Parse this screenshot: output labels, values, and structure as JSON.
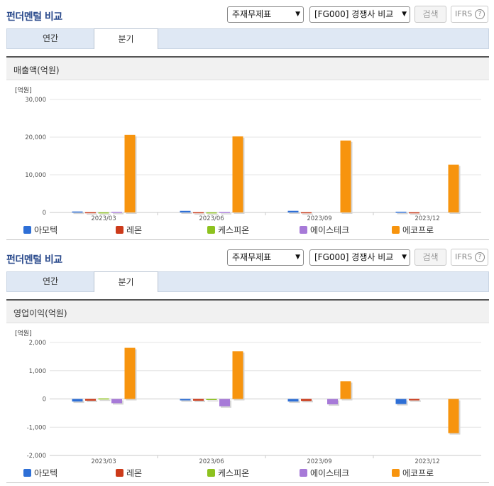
{
  "panels": [
    {
      "header": {
        "title": "펀더멘털 비교",
        "statement_select": "주재무제표",
        "compare_select": "[FG000] 경쟁사 비교",
        "search_label": "검색",
        "ifrs_label": "IFRS",
        "help_glyph": "?"
      },
      "tabs": [
        {
          "label": "연간",
          "active": false
        },
        {
          "label": "분기",
          "active": true
        }
      ],
      "metric_title": "매출액(억원)",
      "chart_data": {
        "type": "bar",
        "unit_label": "[억원]",
        "categories": [
          "2023/03",
          "2023/06",
          "2023/09",
          "2023/12"
        ],
        "ylim": [
          0,
          30000
        ],
        "yticks": [
          0,
          10000,
          20000,
          30000
        ],
        "ytick_labels": [
          "0",
          "10,000",
          "20,000",
          "30,000"
        ],
        "grid": true,
        "legend_position": "bottom",
        "series": [
          {
            "name": "아모텍",
            "color": "#2e6fd6",
            "values": [
              250,
              420,
              430,
              200
            ]
          },
          {
            "name": "레몬",
            "color": "#cc3a1a",
            "values": [
              60,
              60,
              55,
              40
            ]
          },
          {
            "name": "케스피온",
            "color": "#8dc21f",
            "values": [
              20,
              20,
              0,
              0
            ]
          },
          {
            "name": "에이스테크",
            "color": "#a77ad8",
            "values": [
              180,
              140,
              0,
              0
            ]
          },
          {
            "name": "에코프로",
            "color": "#f7940e",
            "values": [
              20600,
              20200,
              19100,
              12700
            ]
          }
        ]
      }
    },
    {
      "header": {
        "title": "펀더멘털 비교",
        "statement_select": "주재무제표",
        "compare_select": "[FG000] 경쟁사 비교",
        "search_label": "검색",
        "ifrs_label": "IFRS",
        "help_glyph": "?"
      },
      "tabs": [
        {
          "label": "연간",
          "active": false
        },
        {
          "label": "분기",
          "active": true
        }
      ],
      "metric_title": "영업이익(억원)",
      "chart_data": {
        "type": "bar",
        "unit_label": "[억원]",
        "categories": [
          "2023/03",
          "2023/06",
          "2023/09",
          "2023/12"
        ],
        "ylim": [
          -2000,
          2000
        ],
        "yticks": [
          -2000,
          -1000,
          0,
          1000,
          2000
        ],
        "ytick_labels": [
          "-2,000",
          "-1,000",
          "0",
          "1,000",
          "2,000"
        ],
        "grid": true,
        "legend_position": "bottom",
        "series": [
          {
            "name": "아모텍",
            "color": "#2e6fd6",
            "values": [
              -90,
              -50,
              -90,
              -180
            ]
          },
          {
            "name": "레몬",
            "color": "#cc3a1a",
            "values": [
              -60,
              -60,
              -70,
              -50
            ]
          },
          {
            "name": "케스피온",
            "color": "#8dc21f",
            "values": [
              20,
              -10,
              0,
              0
            ]
          },
          {
            "name": "에이스테크",
            "color": "#a77ad8",
            "values": [
              -150,
              -260,
              -190,
              0
            ]
          },
          {
            "name": "에코프로",
            "color": "#f7940e",
            "values": [
              1810,
              1690,
              630,
              -1210
            ]
          }
        ]
      }
    }
  ]
}
